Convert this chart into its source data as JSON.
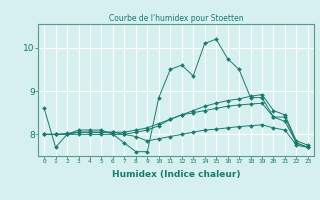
{
  "title": "Courbe de l'humidex pour Stoetten",
  "xlabel": "Humidex (Indice chaleur)",
  "background_color": "#d6f0ef",
  "grid_color": "#ffffff",
  "line_color": "#1a7a6e",
  "xlim": [
    -0.5,
    23.5
  ],
  "ylim": [
    7.5,
    10.55
  ],
  "yticks": [
    8,
    9,
    10
  ],
  "xticks": [
    0,
    1,
    2,
    3,
    4,
    5,
    6,
    7,
    8,
    9,
    10,
    11,
    12,
    13,
    14,
    15,
    16,
    17,
    18,
    19,
    20,
    21,
    22,
    23
  ],
  "series": [
    {
      "x": [
        0,
        1,
        2,
        3,
        4,
        5,
        6,
        7,
        8,
        9,
        10,
        11,
        12,
        13,
        14,
        15,
        16,
        17,
        18,
        19,
        20,
        21,
        22,
        23
      ],
      "y": [
        8.6,
        7.7,
        8.0,
        8.1,
        8.1,
        8.1,
        8.0,
        7.8,
        7.6,
        7.6,
        8.85,
        9.5,
        9.6,
        9.35,
        10.1,
        10.2,
        9.75,
        9.5,
        8.85,
        8.85,
        8.4,
        8.4,
        7.8,
        7.7
      ]
    },
    {
      "x": [
        0,
        1,
        2,
        3,
        4,
        5,
        6,
        7,
        8,
        9,
        10,
        11,
        12,
        13,
        14,
        15,
        16,
        17,
        18,
        19,
        20,
        21,
        22,
        23
      ],
      "y": [
        8.0,
        8.0,
        8.0,
        8.0,
        8.0,
        8.0,
        8.0,
        8.0,
        8.05,
        8.1,
        8.2,
        8.35,
        8.45,
        8.55,
        8.65,
        8.72,
        8.78,
        8.82,
        8.88,
        8.92,
        8.55,
        8.45,
        7.85,
        7.75
      ]
    },
    {
      "x": [
        0,
        1,
        2,
        3,
        4,
        5,
        6,
        7,
        8,
        9,
        10,
        11,
        12,
        13,
        14,
        15,
        16,
        17,
        18,
        19,
        20,
        21,
        22,
        23
      ],
      "y": [
        8.0,
        8.0,
        8.0,
        8.05,
        8.05,
        8.05,
        8.05,
        8.05,
        8.1,
        8.15,
        8.25,
        8.35,
        8.45,
        8.5,
        8.55,
        8.6,
        8.65,
        8.68,
        8.7,
        8.72,
        8.4,
        8.3,
        7.8,
        7.7
      ]
    },
    {
      "x": [
        0,
        1,
        2,
        3,
        4,
        5,
        6,
        7,
        8,
        9,
        10,
        11,
        12,
        13,
        14,
        15,
        16,
        17,
        18,
        19,
        20,
        21,
        22,
        23
      ],
      "y": [
        8.0,
        8.0,
        8.02,
        8.05,
        8.05,
        8.05,
        8.05,
        8.0,
        7.95,
        7.85,
        7.9,
        7.95,
        8.0,
        8.05,
        8.1,
        8.12,
        8.15,
        8.18,
        8.2,
        8.22,
        8.15,
        8.1,
        7.75,
        7.7
      ]
    }
  ]
}
